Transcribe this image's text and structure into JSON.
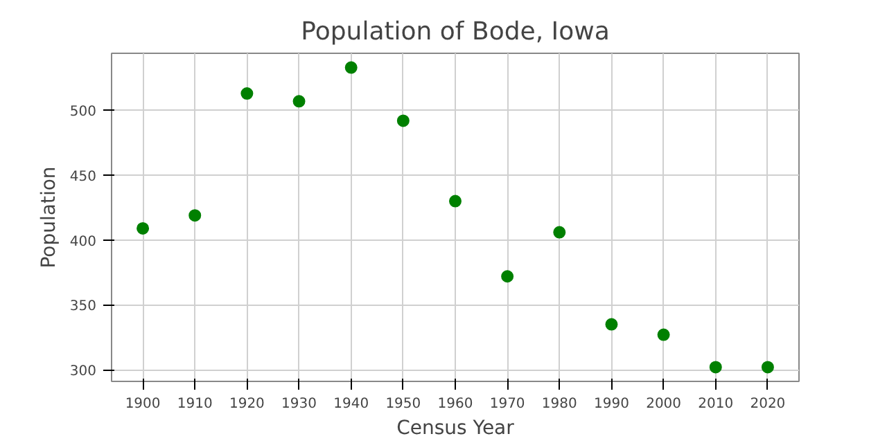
{
  "chart_data": {
    "type": "scatter",
    "title": "Population of Bode, Iowa",
    "xlabel": "Census Year",
    "ylabel": "Population",
    "x": [
      1900,
      1910,
      1920,
      1930,
      1940,
      1950,
      1960,
      1970,
      1980,
      1990,
      2000,
      2010,
      2020
    ],
    "series": [
      {
        "color": "#008000",
        "values": [
          409,
          419,
          513,
          507,
          533,
          492,
          430,
          372,
          406,
          335,
          327,
          302,
          302
        ]
      }
    ],
    "xlim": [
      1894,
      2026
    ],
    "ylim": [
      291,
      544
    ],
    "xticks": [
      1900,
      1910,
      1920,
      1930,
      1940,
      1950,
      1960,
      1970,
      1980,
      1990,
      2000,
      2010,
      2020
    ],
    "yticks": [
      300,
      350,
      400,
      450,
      500
    ],
    "grid": true,
    "marker": "circle"
  }
}
